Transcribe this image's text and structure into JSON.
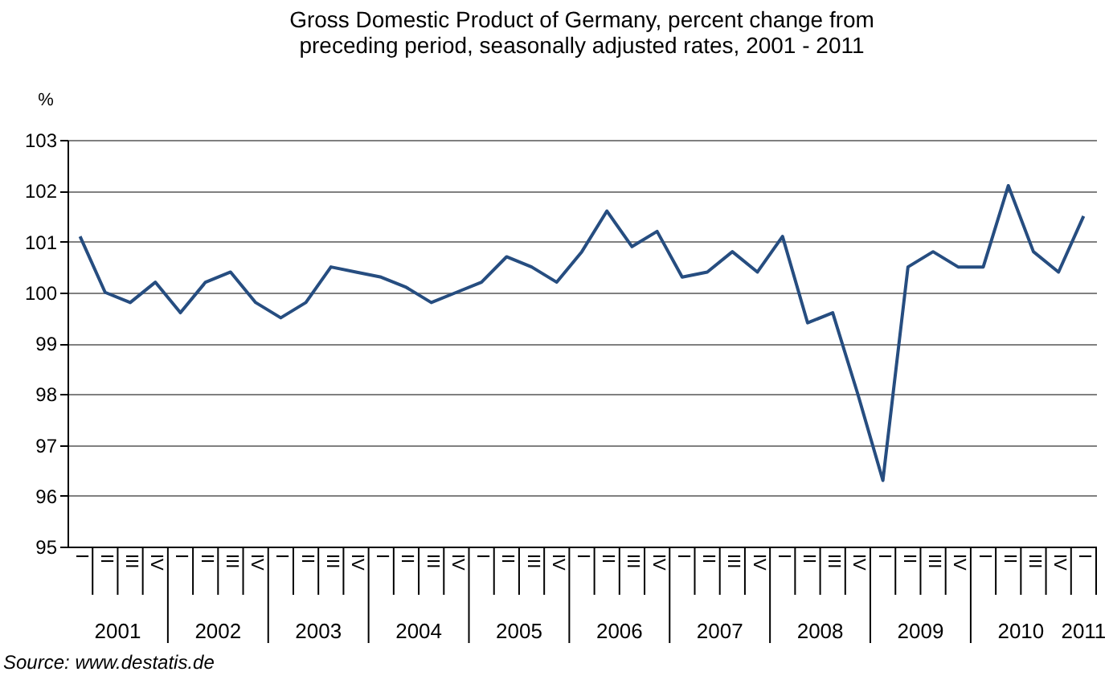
{
  "chart_data": {
    "type": "line",
    "title": "Gross Domestic Product of Germany, percent change from preceding period, seasonally adjusted rates, 2001 - 2011",
    "ylabel": "%",
    "categories": [
      "I",
      "II",
      "III",
      "IV",
      "I",
      "II",
      "III",
      "IV",
      "I",
      "II",
      "III",
      "IV",
      "I",
      "II",
      "III",
      "IV",
      "I",
      "II",
      "III",
      "IV",
      "I",
      "II",
      "III",
      "IV",
      "I",
      "II",
      "III",
      "IV",
      "I",
      "II",
      "III",
      "IV",
      "I",
      "II",
      "III",
      "IV",
      "I",
      "II",
      "III",
      "IV",
      "I"
    ],
    "series": [
      {
        "color": "#264d80",
        "values": [
          101.1,
          100.0,
          99.8,
          100.2,
          99.6,
          100.2,
          100.4,
          99.8,
          99.5,
          99.8,
          100.5,
          100.4,
          100.3,
          100.1,
          99.8,
          100.0,
          100.2,
          100.7,
          100.5,
          100.2,
          100.8,
          101.6,
          100.9,
          101.2,
          100.3,
          100.4,
          100.8,
          100.4,
          101.1,
          99.4,
          99.6,
          98.0,
          96.3,
          100.5,
          100.8,
          100.5,
          100.5,
          102.1,
          100.8,
          100.4,
          101.5
        ]
      }
    ],
    "ylim": [
      95,
      103
    ],
    "yticks": [
      95,
      96,
      97,
      98,
      99,
      100,
      101,
      102,
      103
    ],
    "grid": "y",
    "legend": false,
    "marker": "none",
    "line_style": "solid",
    "annotations": [
      "2001",
      "2002",
      "2003",
      "2004",
      "2005",
      "2006",
      "2007",
      "2008",
      "2009",
      "2010",
      "2011",
      "Source: www.destatis.de"
    ]
  }
}
